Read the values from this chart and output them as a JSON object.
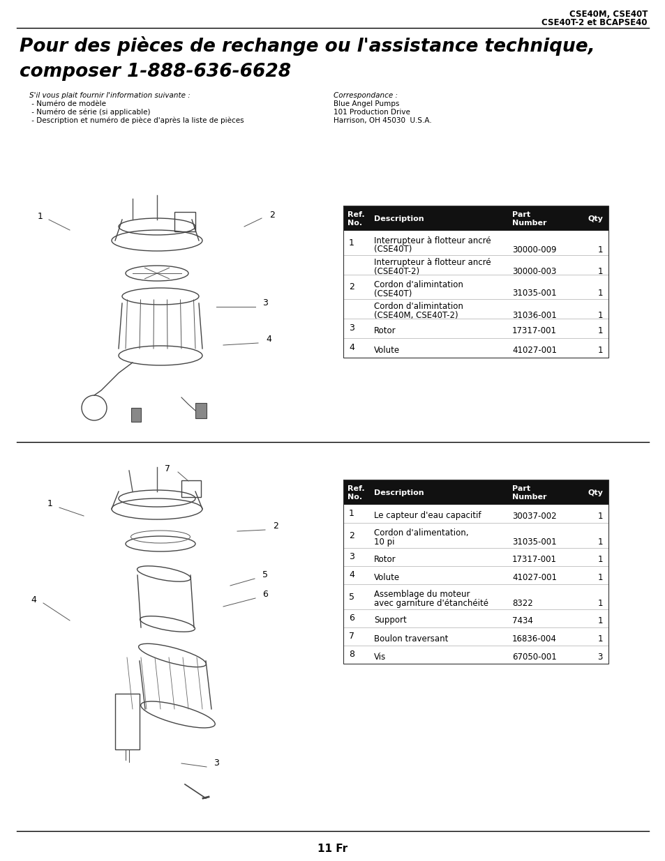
{
  "bg_color": "#ffffff",
  "header_right_line1": "CSE40M, CSE40T",
  "header_right_line2": "CSE40T-2 et BCAPSE40",
  "title_line1": "Pour des pièces de rechange ou l'assistance technique,",
  "title_line2": "composer 1-888-636-6628",
  "left_col_label": "S'il vous plait fournir l'information suivante :",
  "left_col_items": [
    " - Numéro de modèle",
    " - Numéro de série (si applicable)",
    " - Description et numéro de pièce d'après la liste de pièces"
  ],
  "right_col_label": "Correspondance :",
  "right_col_items": [
    "Blue Angel Pumps",
    "101 Production Drive",
    "Harrison, OH 45030  U.S.A."
  ],
  "table1_rows": [
    [
      "1",
      "Interrupteur à flotteur ancré\n(CSE40T)",
      "30000-009",
      "1"
    ],
    [
      "",
      "Interrupteur à flotteur ancré\n(CSE40T-2)",
      "30000-003",
      "1"
    ],
    [
      "2",
      "Cordon d'alimintation\n(CSE40T)",
      "31035-001",
      "1"
    ],
    [
      "",
      "Cordon d'alimintation\n(CSE40M, CSE40T-2)",
      "31036-001",
      "1"
    ],
    [
      "3",
      "Rotor",
      "17317-001",
      "1"
    ],
    [
      "4",
      "Volute",
      "41027-001",
      "1"
    ]
  ],
  "table2_rows": [
    [
      "1",
      "Le capteur d'eau capacitif",
      "30037-002",
      "1"
    ],
    [
      "2",
      "Cordon d'alimentation,\n10 pi",
      "31035-001",
      "1"
    ],
    [
      "3",
      "Rotor",
      "17317-001",
      "1"
    ],
    [
      "4",
      "Volute",
      "41027-001",
      "1"
    ],
    [
      "5",
      "Assemblage du moteur\navec garniture d'étanchéité",
      "8322",
      "1"
    ],
    [
      "6",
      "Support",
      "7434",
      "1"
    ],
    [
      "7",
      "Boulon traversant",
      "16836-004",
      "1"
    ],
    [
      "8",
      "Vis",
      "67050-001",
      "3"
    ]
  ],
  "footer_text": "11 Fr",
  "header_bg": "#111111",
  "header_fg": "#ffffff",
  "row_bg": "#ffffff",
  "line_color": "#aaaaaa",
  "table_border": "#333333",
  "section_line": "#000000"
}
